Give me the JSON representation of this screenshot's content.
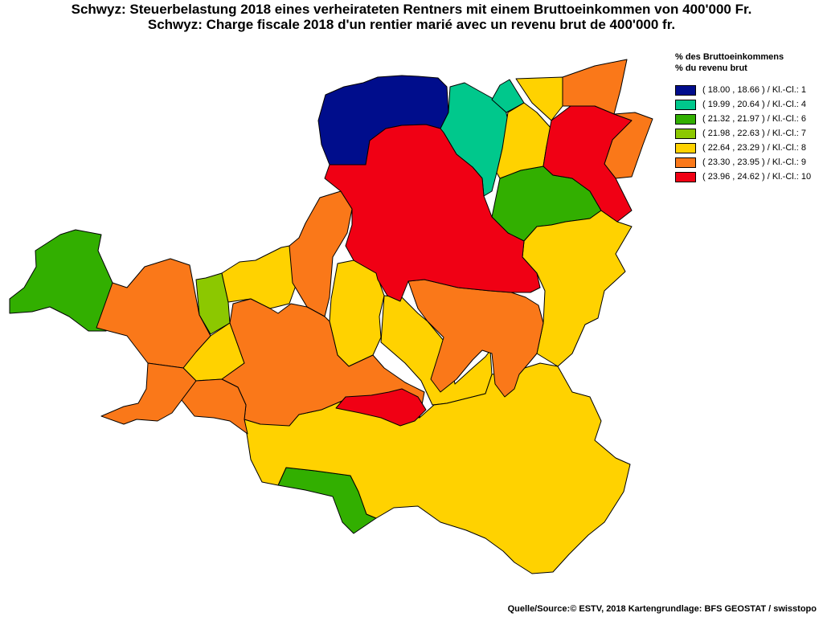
{
  "title": {
    "de": "Schwyz: Steuerbelastung 2018 eines verheirateten Rentners mit einem Bruttoeinkommen von 400'000 Fr.",
    "fr": "Schwyz: Charge fiscale 2018 d'un rentier marié avec un revenu brut de 400'000 fr."
  },
  "legend": {
    "heading_de": "% des Bruttoeinkommens",
    "heading_fr": "% du revenu brut",
    "classes": [
      {
        "label": "( 18.00 , 18.66 ) / Kl.-Cl.: 1",
        "color": "#000d8c"
      },
      {
        "label": "( 19.99 , 20.64 ) / Kl.-Cl.: 4",
        "color": "#00c88c"
      },
      {
        "label": "( 21.32 , 21.97 ) / Kl.-Cl.: 6",
        "color": "#32af00"
      },
      {
        "label": "( 21.98 , 22.63 ) / Kl.-Cl.: 7",
        "color": "#8cc800"
      },
      {
        "label": "( 22.64 , 23.29 ) / Kl.-Cl.: 8",
        "color": "#ffd200"
      },
      {
        "label": "( 23.30 , 23.95 ) / Kl.-Cl.: 9",
        "color": "#fa7819"
      },
      {
        "label": "( 23.96 , 24.62 ) / Kl.-Cl.: 10",
        "color": "#f00014"
      }
    ]
  },
  "source": "Quelle/Source:© ESTV, 2018 Kartengrundlage: BFS GEOSTAT / swisstopo"
}
